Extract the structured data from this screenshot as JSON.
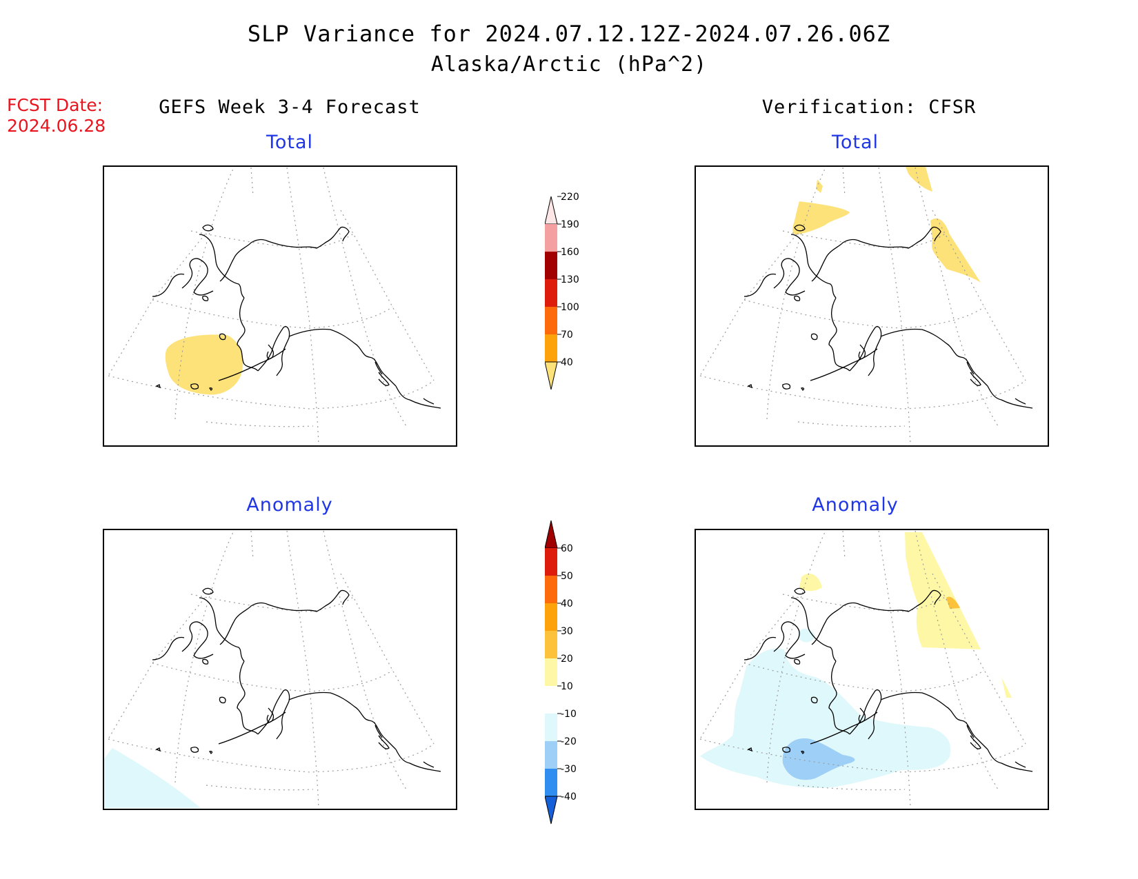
{
  "header": {
    "title": "SLP Variance for 2024.07.12.12Z-2024.07.26.06Z",
    "subtitle": "Alaska/Arctic (hPa^2)"
  },
  "fcst_date": {
    "label": "FCST Date:",
    "value": "2024.06.28"
  },
  "columns": {
    "left": "GEFS Week 3-4 Forecast",
    "right": "Verification: CFSR"
  },
  "panels": {
    "total_label": "Total",
    "anomaly_label": "Anomaly"
  },
  "total_colorbar": {
    "levels": [
      "40",
      "70",
      "100",
      "130",
      "160",
      "190",
      "220"
    ],
    "colors": [
      "#fde27a",
      "#fda20a",
      "#fd6a0c",
      "#dd1c0c",
      "#a00000",
      "#f4a0a0",
      "#fde6e6"
    ]
  },
  "anomaly_colorbar": {
    "levels": [
      "-40",
      "-30",
      "-20",
      "-10",
      "10",
      "20",
      "30",
      "40",
      "50",
      "60"
    ],
    "colors": [
      "#1560d8",
      "#2f8ef0",
      "#9ecff7",
      "#dff8fb",
      "#ffffff",
      "#fef8a6",
      "#fdc23c",
      "#fda20a",
      "#fd6a0c",
      "#dd1c0c",
      "#a00000"
    ]
  }
}
